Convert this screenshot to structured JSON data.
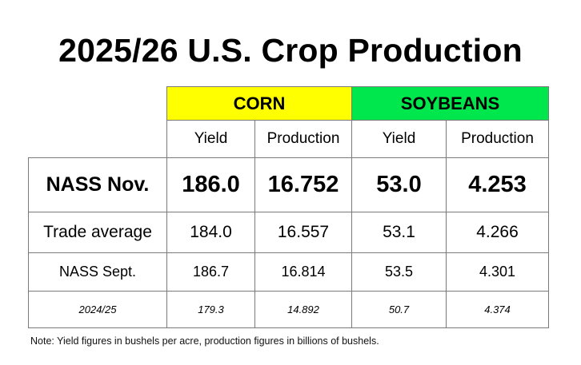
{
  "title": "2025/26 U.S. Crop Production",
  "groups": {
    "corn": "CORN",
    "soybeans": "SOYBEANS"
  },
  "columns": [
    "Yield",
    "Production",
    "Yield",
    "Production"
  ],
  "rows": [
    {
      "label": "NASS Nov.",
      "corn_yield": "186.0",
      "corn_production": "16.752",
      "soy_yield": "53.0",
      "soy_production": "4.253"
    },
    {
      "label": "Trade average",
      "corn_yield": "184.0",
      "corn_production": "16.557",
      "soy_yield": "53.1",
      "soy_production": "4.266"
    },
    {
      "label": "NASS Sept.",
      "corn_yield": "186.7",
      "corn_production": "16.814",
      "soy_yield": "53.5",
      "soy_production": "4.301"
    },
    {
      "label": "2024/25",
      "corn_yield": "179.3",
      "corn_production": "14.892",
      "soy_yield": "50.7",
      "soy_production": "4.374"
    }
  ],
  "note": "Note: Yield figures in bushels per acre, production figures in billions of bushels.",
  "colors": {
    "corn_header": "#ffff00",
    "soybeans_header": "#00e64d",
    "border": "#7a7a7a"
  }
}
